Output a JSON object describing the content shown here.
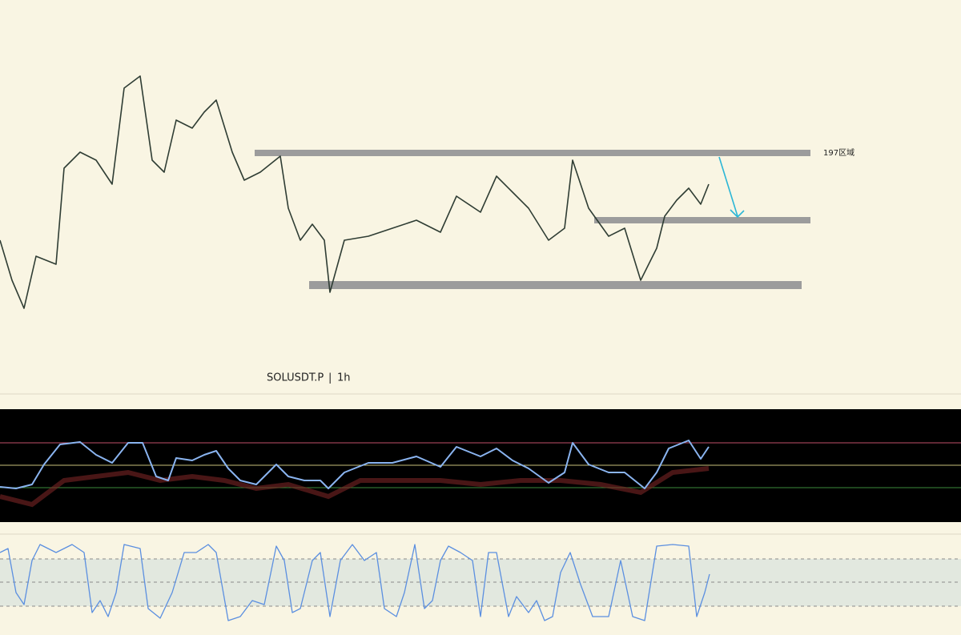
{
  "chart": {
    "symbol": "SOLUSDT.P",
    "separator": "|",
    "interval": "1h",
    "zone_label": "197区域"
  }
}
